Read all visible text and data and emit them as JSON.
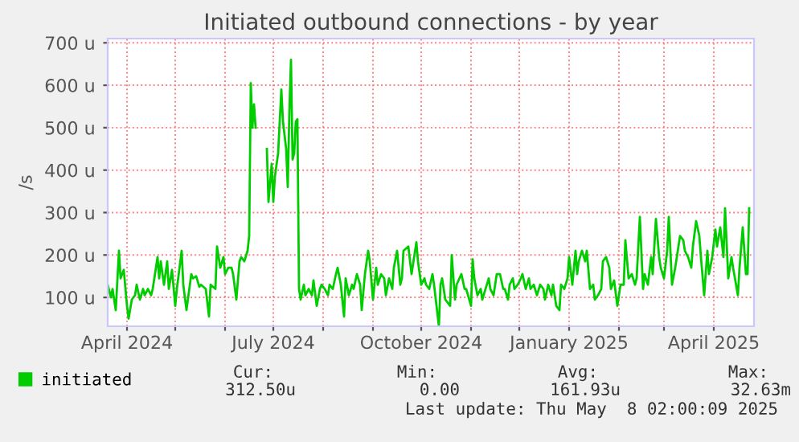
{
  "chart_data": {
    "type": "line",
    "title": "Initiated outbound connections - by year",
    "ylabel": "/s",
    "xlim": [
      "2024-03-20",
      "2025-04-26"
    ],
    "ylim": [
      32,
      710
    ],
    "xticks": [
      {
        "value": "2024-04-01",
        "label": "April 2024"
      },
      {
        "value": "2024-05-01",
        "label": null
      },
      {
        "value": "2024-06-01",
        "label": null
      },
      {
        "value": "2024-07-01",
        "label": "July 2024"
      },
      {
        "value": "2024-08-01",
        "label": null
      },
      {
        "value": "2024-09-01",
        "label": null
      },
      {
        "value": "2024-10-01",
        "label": "October 2024"
      },
      {
        "value": "2024-11-01",
        "label": null
      },
      {
        "value": "2024-12-01",
        "label": null
      },
      {
        "value": "2025-01-01",
        "label": "January 2025"
      },
      {
        "value": "2025-02-01",
        "label": null
      },
      {
        "value": "2025-03-01",
        "label": null
      },
      {
        "value": "2025-04-01",
        "label": "April 2025"
      }
    ],
    "yticks": [
      {
        "value": 100,
        "label": "100 u"
      },
      {
        "value": 200,
        "label": "200 u"
      },
      {
        "value": 300,
        "label": "300 u"
      },
      {
        "value": 400,
        "label": "400 u"
      },
      {
        "value": 500,
        "label": "500 u"
      },
      {
        "value": 600,
        "label": "600 u"
      },
      {
        "value": 700,
        "label": "700 u"
      }
    ],
    "grid": true,
    "legend": "bottom left",
    "marker": "none",
    "line_style": "solid",
    "annotations": [
      "Cur:",
      "Min:",
      "Avg:",
      "Max:",
      "312.50u",
      "0.00",
      "161.93u",
      "32.63m",
      "Last update: Thu May  8 02:00:09 2025"
    ],
    "series": [
      {
        "name": "initiated",
        "color": "#00cc00",
        "x": [
          "2024-03-20",
          "2024-03-22",
          "2024-03-23",
          "2024-03-25",
          "2024-03-27",
          "2024-03-28",
          "2024-03-30",
          "2024-04-01",
          "2024-04-02",
          "2024-04-04",
          "2024-04-06",
          "2024-04-07",
          "2024-04-09",
          "2024-04-11",
          "2024-04-12",
          "2024-04-14",
          "2024-04-16",
          "2024-04-17",
          "2024-04-20",
          "2024-04-21",
          "2024-04-22",
          "2024-04-24",
          "2024-04-26",
          "2024-04-27",
          "2024-04-29",
          "2024-05-01",
          "2024-05-02",
          "2024-05-05",
          "2024-05-06",
          "2024-05-08",
          "2024-05-11",
          "2024-05-12",
          "2024-05-14",
          "2024-05-16",
          "2024-05-17",
          "2024-05-20",
          "2024-05-22",
          "2024-05-23",
          "2024-05-26",
          "2024-05-27",
          "2024-05-29",
          "2024-05-31",
          "2024-06-01",
          "2024-06-03",
          "2024-06-05",
          "2024-06-06",
          "2024-06-08",
          "2024-06-10",
          "2024-06-11",
          "2024-06-13",
          "2024-06-15",
          "2024-06-16",
          "2024-06-17",
          "2024-06-18",
          "2024-06-19",
          "2024-06-20",
          "2024-06-23",
          "2024-06-27",
          "2024-06-28",
          "2024-06-30",
          "2024-07-01",
          "2024-07-02",
          "2024-07-04",
          "2024-07-05",
          "2024-07-06",
          "2024-07-07",
          "2024-07-09",
          "2024-07-10",
          "2024-07-11",
          "2024-07-12",
          "2024-07-13",
          "2024-07-14",
          "2024-07-15",
          "2024-07-16",
          "2024-07-17",
          "2024-07-18",
          "2024-07-20",
          "2024-07-21",
          "2024-07-23",
          "2024-07-25",
          "2024-07-26",
          "2024-07-28",
          "2024-07-30",
          "2024-07-31",
          "2024-08-02",
          "2024-08-04",
          "2024-08-05",
          "2024-08-07",
          "2024-08-09",
          "2024-08-10",
          "2024-08-12",
          "2024-08-14",
          "2024-08-15",
          "2024-08-17",
          "2024-08-19",
          "2024-08-20",
          "2024-08-22",
          "2024-08-24",
          "2024-08-25",
          "2024-08-27",
          "2024-08-29",
          "2024-08-30",
          "2024-09-01",
          "2024-09-03",
          "2024-09-04",
          "2024-09-06",
          "2024-09-08",
          "2024-09-09",
          "2024-09-11",
          "2024-09-13",
          "2024-09-14",
          "2024-09-16",
          "2024-09-18",
          "2024-09-19",
          "2024-09-20",
          "2024-09-23",
          "2024-09-25",
          "2024-09-28",
          "2024-09-29",
          "2024-10-01",
          "2024-10-03",
          "2024-10-04",
          "2024-10-06",
          "2024-10-08",
          "2024-10-09",
          "2024-10-12",
          "2024-10-13",
          "2024-10-14",
          "2024-10-16",
          "2024-10-19",
          "2024-10-20",
          "2024-10-22",
          "2024-10-23",
          "2024-10-26",
          "2024-10-28",
          "2024-10-29",
          "2024-11-01",
          "2024-11-02",
          "2024-11-03",
          "2024-11-05",
          "2024-11-07",
          "2024-11-08",
          "2024-11-10",
          "2024-11-12",
          "2024-11-13",
          "2024-11-15",
          "2024-11-17",
          "2024-11-19",
          "2024-11-21",
          "2024-11-22",
          "2024-11-24",
          "2024-11-25",
          "2024-11-27",
          "2024-11-28",
          "2024-11-30",
          "2024-12-02",
          "2024-12-03",
          "2024-12-05",
          "2024-12-07",
          "2024-12-08",
          "2024-12-10",
          "2024-12-12",
          "2024-12-14",
          "2024-12-16",
          "2024-12-17",
          "2024-12-19",
          "2024-12-21",
          "2024-12-22",
          "2024-12-24",
          "2024-12-26",
          "2024-12-27",
          "2024-12-29",
          "2024-12-31",
          "2025-01-01",
          "2025-01-03",
          "2025-01-05",
          "2025-01-06",
          "2025-01-07",
          "2025-01-09",
          "2025-01-11",
          "2025-01-12",
          "2025-01-14",
          "2025-01-16",
          "2025-01-17",
          "2025-01-19",
          "2025-01-21",
          "2025-01-22",
          "2025-01-24",
          "2025-01-26",
          "2025-01-27",
          "2025-01-29",
          "2025-01-31",
          "2025-02-02",
          "2025-02-04",
          "2025-02-05",
          "2025-02-07",
          "2025-02-09",
          "2025-02-11",
          "2025-02-12",
          "2025-02-14",
          "2025-02-16",
          "2025-02-17",
          "2025-02-19",
          "2025-02-21",
          "2025-02-22",
          "2025-02-24",
          "2025-02-26",
          "2025-02-27",
          "2025-03-01",
          "2025-03-03",
          "2025-03-04",
          "2025-03-06",
          "2025-03-08",
          "2025-03-09",
          "2025-03-11",
          "2025-03-13",
          "2025-03-14",
          "2025-03-16",
          "2025-03-18",
          "2025-03-19",
          "2025-03-21",
          "2025-03-23",
          "2025-03-24",
          "2025-03-26",
          "2025-03-28",
          "2025-03-29",
          "2025-03-31",
          "2025-04-02",
          "2025-04-03",
          "2025-04-05",
          "2025-04-07",
          "2025-04-08",
          "2025-04-10",
          "2025-04-12",
          "2025-04-13",
          "2025-04-16",
          "2025-04-17",
          "2025-04-19",
          "2025-04-21",
          "2025-04-22",
          "2025-04-23"
        ],
        "values": [
          130,
          100,
          120,
          70,
          210,
          145,
          165,
          80,
          50,
          95,
          105,
          130,
          95,
          120,
          105,
          120,
          105,
          120,
          195,
          145,
          185,
          130,
          185,
          120,
          165,
          80,
          120,
          210,
          130,
          70,
          155,
          145,
          150,
          125,
          130,
          120,
          55,
          130,
          120,
          220,
          170,
          195,
          155,
          170,
          170,
          155,
          95,
          185,
          195,
          185,
          210,
          245,
          605,
          500,
          555,
          500,
          null,
          450,
          325,
          415,
          325,
          385,
          440,
          515,
          590,
          515,
          450,
          360,
          540,
          660,
          425,
          440,
          515,
          520,
          120,
          95,
          130,
          105,
          120,
          105,
          140,
          80,
          120,
          130,
          120,
          105,
          130,
          120,
          155,
          170,
          130,
          55,
          145,
          105,
          130,
          120,
          155,
          130,
          70,
          155,
          210,
          185,
          95,
          170,
          130,
          155,
          145,
          105,
          145,
          120,
          170,
          210,
          130,
          145,
          210,
          220,
          155,
          230,
          185,
          130,
          145,
          130,
          120,
          155,
          130,
          32,
          130,
          145,
          95,
          80,
          200,
          95,
          130,
          155,
          120,
          120,
          80,
          190,
          145,
          105,
          120,
          95,
          120,
          145,
          120,
          105,
          155,
          155,
          120,
          120,
          95,
          130,
          145,
          120,
          130,
          145,
          155,
          120,
          145,
          120,
          130,
          105,
          130,
          120,
          95,
          130,
          105,
          130,
          80,
          70,
          130,
          120,
          145,
          195,
          130,
          210,
          155,
          185,
          210,
          185,
          210,
          120,
          130,
          95,
          105,
          120,
          185,
          195,
          170,
          120,
          140,
          80,
          130,
          130,
          235,
          145,
          155,
          130,
          145,
          290,
          120,
          155,
          130,
          195,
          155,
          285,
          195,
          170,
          145,
          210,
          290,
          130,
          170,
          195,
          245,
          235,
          210,
          195,
          170,
          220,
          280,
          245,
          195,
          105,
          210,
          155,
          195,
          260,
          220,
          265,
          195,
          310,
          145,
          195,
          170,
          105,
          170,
          265,
          155,
          155,
          310
        ]
      }
    ]
  }
}
